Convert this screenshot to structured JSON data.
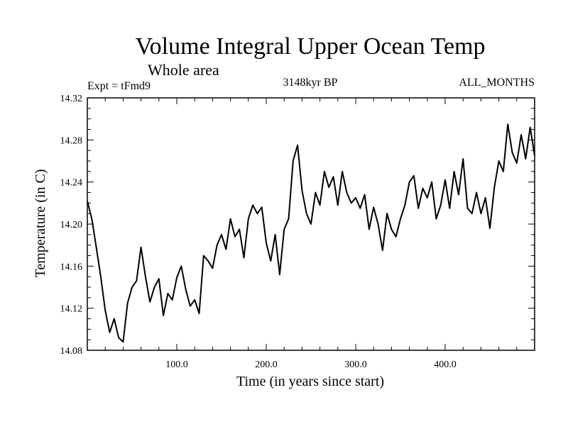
{
  "chart_data": {
    "type": "line",
    "title": "Volume Integral Upper Ocean Temp",
    "subtitle": "Whole area",
    "expt_label": "Expt = tFmd9",
    "period_label": "3148kyr BP",
    "months_label": "ALL_MONTHS",
    "xlabel": "Time (in years since start)",
    "ylabel": "Temperature (in C)",
    "xlim": [
      0,
      500
    ],
    "ylim": [
      14.08,
      14.32
    ],
    "x_ticks": [
      100,
      200,
      300,
      400
    ],
    "x_tick_labels": [
      "100.0",
      "200.0",
      "300.0",
      "400.0"
    ],
    "y_ticks": [
      14.08,
      14.12,
      14.16,
      14.2,
      14.24,
      14.28,
      14.32
    ],
    "y_tick_labels": [
      "14.08",
      "14.12",
      "14.16",
      "14.20",
      "14.24",
      "14.28",
      "14.32"
    ],
    "series": [
      {
        "name": "Volume Integral Upper Ocean Temp",
        "color": "#000000",
        "x": [
          0,
          5,
          10,
          15,
          20,
          25,
          30,
          35,
          40,
          45,
          50,
          55,
          60,
          65,
          70,
          75,
          80,
          85,
          90,
          95,
          100,
          105,
          110,
          115,
          120,
          125,
          130,
          135,
          140,
          145,
          150,
          155,
          160,
          165,
          170,
          175,
          180,
          185,
          190,
          195,
          200,
          205,
          210,
          215,
          220,
          225,
          230,
          235,
          240,
          245,
          250,
          255,
          260,
          265,
          270,
          275,
          280,
          285,
          290,
          295,
          300,
          305,
          310,
          315,
          320,
          325,
          330,
          335,
          340,
          345,
          350,
          355,
          360,
          365,
          370,
          375,
          380,
          385,
          390,
          395,
          400,
          405,
          410,
          415,
          420,
          425,
          430,
          435,
          440,
          445,
          450,
          455,
          460,
          465,
          470,
          475,
          480,
          485,
          490,
          495,
          500
        ],
        "values": [
          14.222,
          14.205,
          14.178,
          14.15,
          14.118,
          14.097,
          14.11,
          14.092,
          14.088,
          14.125,
          14.14,
          14.146,
          14.178,
          14.15,
          14.126,
          14.14,
          14.148,
          14.113,
          14.134,
          14.128,
          14.149,
          14.16,
          14.138,
          14.122,
          14.128,
          14.115,
          14.17,
          14.165,
          14.158,
          14.18,
          14.19,
          14.176,
          14.205,
          14.188,
          14.195,
          14.168,
          14.205,
          14.218,
          14.21,
          14.216,
          14.182,
          14.165,
          14.19,
          14.152,
          14.195,
          14.205,
          14.26,
          14.275,
          14.232,
          14.21,
          14.2,
          14.23,
          14.218,
          14.25,
          14.235,
          14.245,
          14.218,
          14.25,
          14.23,
          14.22,
          14.225,
          14.215,
          14.228,
          14.195,
          14.216,
          14.2,
          14.175,
          14.21,
          14.195,
          14.188,
          14.205,
          14.218,
          14.24,
          14.246,
          14.215,
          14.234,
          14.225,
          14.24,
          14.205,
          14.218,
          14.242,
          14.215,
          14.25,
          14.228,
          14.262,
          14.215,
          14.21,
          14.23,
          14.21,
          14.225,
          14.196,
          14.235,
          14.26,
          14.25,
          14.295,
          14.268,
          14.258,
          14.285,
          14.262,
          14.292,
          14.265
        ]
      }
    ]
  }
}
